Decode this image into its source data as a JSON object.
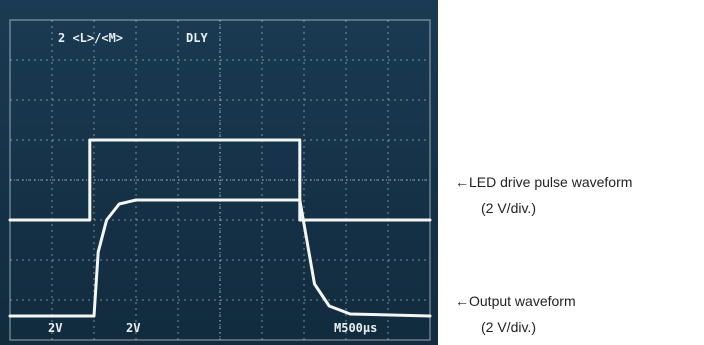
{
  "scope": {
    "header_label": "2 <L>/<M>",
    "mode_label": "DLY",
    "ch1_scale": "2V",
    "ch2_scale": "2V",
    "timebase": "M500µs",
    "colors": {
      "screen": "#163349",
      "trace": "#f4f6f4",
      "graticule": "#cfd8de"
    }
  },
  "annotations": {
    "led_title": "←LED drive pulse waveform",
    "led_scale": "(2 V/div.)",
    "output_title": "←Output  waveform",
    "output_scale": "(2 V/div.)"
  },
  "chart_data": {
    "type": "line",
    "title": "",
    "xlabel": "",
    "ylabel": "",
    "x_unit_per_div": "500 µs",
    "x_divisions": 10,
    "y_divisions": 8,
    "grid": true,
    "series": [
      {
        "name": "LED drive pulse waveform",
        "volts_per_div": 2,
        "x": [
          0,
          1.9,
          1.9,
          6.9,
          6.9,
          10
        ],
        "y": [
          0,
          0,
          2.0,
          2.0,
          0,
          0
        ],
        "baseline_div": 3.0
      },
      {
        "name": "Output waveform",
        "volts_per_div": 2,
        "x": [
          0,
          2.0,
          2.1,
          2.3,
          2.6,
          3.0,
          6.9,
          7.05,
          7.25,
          7.6,
          8.1,
          10
        ],
        "y": [
          0,
          0,
          1.6,
          2.4,
          2.8,
          2.9,
          2.9,
          2.0,
          0.8,
          0.25,
          0.05,
          0
        ],
        "baseline_div": 0.6
      }
    ]
  }
}
